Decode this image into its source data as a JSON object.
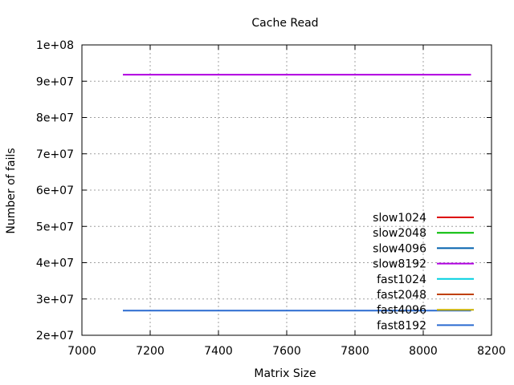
{
  "chart_data": {
    "type": "line",
    "title": "Cache Read",
    "xlabel": "Matrix Size",
    "ylabel": "Number of fails",
    "xlim": [
      7000,
      8200
    ],
    "ylim": [
      20000000,
      100000000
    ],
    "x_ticks": [
      7000,
      7200,
      7400,
      7600,
      7800,
      8000,
      8200
    ],
    "x_tick_labels": [
      "7000",
      "7200",
      "7400",
      "7600",
      "7800",
      "8000",
      "8200"
    ],
    "y_ticks": [
      20000000,
      30000000,
      40000000,
      50000000,
      60000000,
      70000000,
      80000000,
      90000000,
      100000000
    ],
    "y_tick_labels": [
      "2e+07",
      "3e+07",
      "4e+07",
      "5e+07",
      "6e+07",
      "7e+07",
      "8e+07",
      "9e+07",
      "1e+08"
    ],
    "grid": true,
    "legend_position": "bottom-right",
    "series": [
      {
        "name": "slow1024",
        "color": "#dd0000",
        "x": [],
        "y": []
      },
      {
        "name": "slow2048",
        "color": "#00bb00",
        "x": [],
        "y": []
      },
      {
        "name": "slow4096",
        "color": "#0060ad",
        "x": [],
        "y": []
      },
      {
        "name": "slow8192",
        "color": "#b000e0",
        "x": [
          7120,
          8140
        ],
        "y": [
          91800000,
          91800000
        ]
      },
      {
        "name": "fast1024",
        "color": "#00d0e0",
        "x": [],
        "y": []
      },
      {
        "name": "fast2048",
        "color": "#c04000",
        "x": [],
        "y": []
      },
      {
        "name": "fast4096",
        "color": "#c8b000",
        "x": [],
        "y": []
      },
      {
        "name": "fast8192",
        "color": "#2a6ad0",
        "x": [
          7120,
          8140
        ],
        "y": [
          26800000,
          26800000
        ]
      }
    ]
  }
}
